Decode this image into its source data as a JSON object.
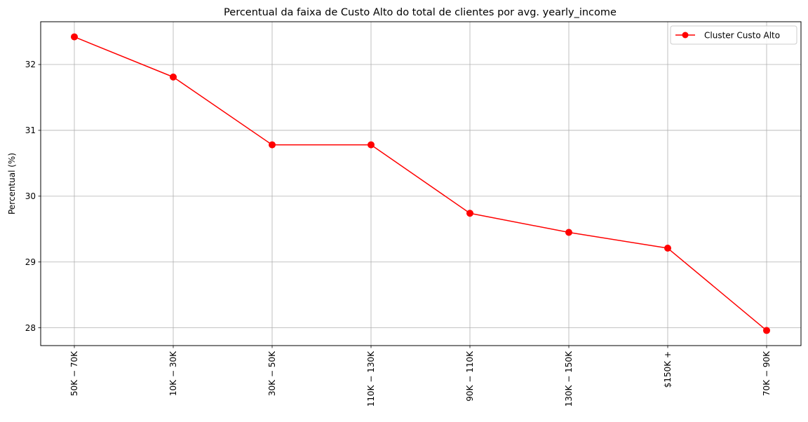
{
  "chart_data": {
    "type": "line",
    "title": "Percentual da faixa de Custo Alto do total de clientes por avg. yearly_income",
    "xlabel": "",
    "ylabel": "Percentual (%)",
    "categories": [
      "$50K - $70K",
      "$10K - $30K",
      "$30K - $50K",
      "$110K - $130K",
      "$90K - $110K",
      "$130K - $150K",
      "$150K +",
      "$70K - $90K"
    ],
    "category_labels": [
      "50K − 70K",
      "10K − 30K",
      "30K − 50K",
      "110K − 130K",
      "90K − 110K",
      "130K − 150K",
      "$150K +",
      "70K − 90K"
    ],
    "series": [
      {
        "name": "Cluster Custo Alto",
        "values": [
          32.42,
          31.81,
          30.78,
          30.78,
          29.74,
          29.45,
          29.21,
          27.96
        ],
        "color": "#ff0000",
        "marker": "circle"
      }
    ],
    "ylim": [
      27.73,
      32.65
    ],
    "yticks": [
      28,
      29,
      30,
      31,
      32
    ],
    "grid": true,
    "legend_position": "top-right"
  }
}
